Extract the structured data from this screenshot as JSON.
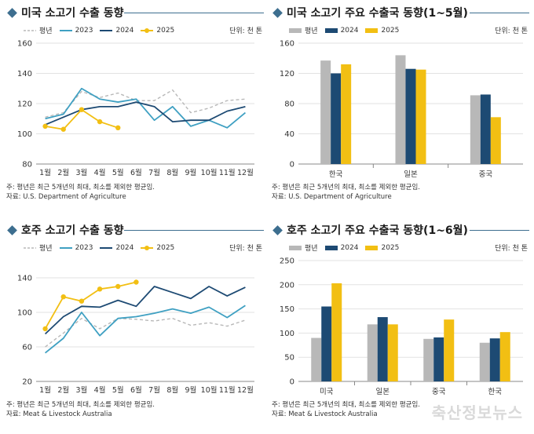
{
  "colors": {
    "avg": "#b8b8b8",
    "y2023": "#3fa0c2",
    "y2024": "#1d4a73",
    "y2025": "#f2bf13",
    "accent": "#3d6e8f"
  },
  "watermark": "축산정보뉴스",
  "legend": {
    "avg": "평년",
    "y2023": "2023",
    "y2024": "2024",
    "y2025": "2025"
  },
  "panels": [
    {
      "title": "미국 소고기 수출 동향",
      "unit": "단위: 천 톤",
      "note1": "주: 평년은 최근 5개년의 최대, 최소를 제외한 평균임.",
      "note2": "자료: U.S. Department of Agriculture"
    },
    {
      "title": "미국 소고기 주요 수출국 동향(1~5월)",
      "unit": "단위: 천 톤",
      "note1": "주: 평년은 최근 5개년의 최대, 최소를 제외한 평균임.",
      "note2": "자료: U.S. Department of Agriculture"
    },
    {
      "title": "호주 소고기 수출 동향",
      "unit": "단위: 천 톤",
      "note1": "주: 평년은 최근 5개년의 최대, 최소를 제외한 평균임.",
      "note2": "자료: Meat & Livestock Australia"
    },
    {
      "title": "호주 소고기 주요 수출국 동향(1~6월)",
      "unit": "단위: 천 톤",
      "note1": "주: 평년은 최근 5개년의 최대, 최소를 제외한 평균임.",
      "note2": "자료: Meat & Livestock Australia"
    }
  ],
  "chart_data": [
    {
      "type": "line",
      "legend": "top-left",
      "grid": true,
      "categories": [
        "1월",
        "2월",
        "3월",
        "4월",
        "5월",
        "6월",
        "7월",
        "8월",
        "9월",
        "10월",
        "11월",
        "12월"
      ],
      "ylim": [
        80,
        160
      ],
      "yticks": [
        80,
        100,
        120,
        140,
        160
      ],
      "series": [
        {
          "name": "평년",
          "values": [
            111,
            114,
            128,
            124,
            127,
            122,
            122,
            129,
            114,
            117,
            122,
            123
          ]
        },
        {
          "name": "2023",
          "values": [
            110,
            113,
            130,
            123,
            121,
            123,
            109,
            118,
            105,
            109,
            104,
            114
          ]
        },
        {
          "name": "2024",
          "values": [
            106,
            111,
            116,
            118,
            118,
            121,
            118,
            108,
            109,
            109,
            115,
            118
          ]
        },
        {
          "name": "2025",
          "values": [
            105,
            103,
            116,
            108,
            104,
            null,
            null,
            null,
            null,
            null,
            null,
            null
          ]
        }
      ]
    },
    {
      "type": "bar",
      "legend": "top-left",
      "grid": true,
      "categories": [
        "한국",
        "일본",
        "중국"
      ],
      "ylim": [
        0,
        160
      ],
      "yticks": [
        0,
        40,
        80,
        120,
        160
      ],
      "series": [
        {
          "name": "평년",
          "values": [
            137,
            144,
            91
          ]
        },
        {
          "name": "2024",
          "values": [
            120,
            126,
            92
          ]
        },
        {
          "name": "2025",
          "values": [
            132,
            125,
            62
          ]
        }
      ]
    },
    {
      "type": "line",
      "legend": "top-left",
      "grid": true,
      "categories": [
        "1월",
        "2월",
        "3월",
        "4월",
        "5월",
        "6월",
        "7월",
        "8월",
        "9월",
        "10월",
        "11월",
        "12월"
      ],
      "ylim": [
        20,
        160
      ],
      "yticks": [
        20,
        60,
        100,
        140
      ],
      "series": [
        {
          "name": "평년",
          "values": [
            60,
            76,
            93,
            81,
            93,
            92,
            90,
            93,
            85,
            88,
            84,
            91
          ]
        },
        {
          "name": "2023",
          "values": [
            53,
            70,
            100,
            73,
            93,
            95,
            99,
            104,
            99,
            106,
            94,
            108
          ]
        },
        {
          "name": "2024",
          "values": [
            75,
            95,
            107,
            106,
            114,
            107,
            130,
            123,
            116,
            130,
            119,
            129
          ]
        },
        {
          "name": "2025",
          "values": [
            81,
            118,
            113,
            127,
            130,
            135,
            null,
            null,
            null,
            null,
            null,
            null
          ]
        }
      ]
    },
    {
      "type": "bar",
      "legend": "top-left",
      "grid": true,
      "categories": [
        "미국",
        "일본",
        "중국",
        "한국"
      ],
      "ylim": [
        0,
        250
      ],
      "yticks": [
        0,
        50,
        100,
        150,
        200,
        250
      ],
      "series": [
        {
          "name": "평년",
          "values": [
            90,
            118,
            88,
            80
          ]
        },
        {
          "name": "2024",
          "values": [
            155,
            133,
            91,
            89
          ]
        },
        {
          "name": "2025",
          "values": [
            203,
            118,
            128,
            102
          ]
        }
      ]
    }
  ]
}
